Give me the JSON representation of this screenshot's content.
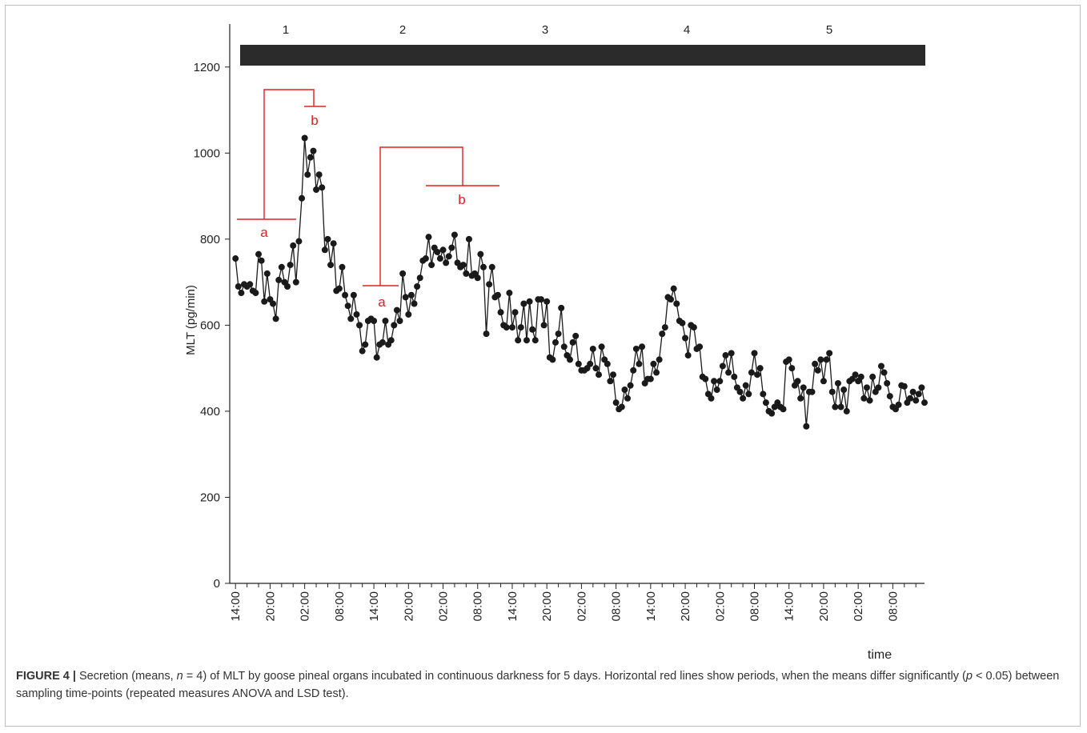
{
  "chart_data": {
    "type": "line",
    "y_label": "MLT (pg/min)",
    "x_label": "time",
    "periods": [
      "1",
      "2",
      "3",
      "4",
      "5"
    ],
    "annotations": [
      "a",
      "b",
      "a",
      "b"
    ],
    "color": "#1a1a1a",
    "annotation_color": "#e0201b",
    "ylim": [
      0,
      1300
    ],
    "yticks": [
      0,
      200,
      400,
      600,
      800,
      1000,
      1200
    ],
    "xlim": [
      -1,
      119.5
    ],
    "xticks": [
      {
        "value": 0,
        "label": "14:00"
      },
      {
        "value": 6,
        "label": "20:00"
      },
      {
        "value": 12,
        "label": "02:00"
      },
      {
        "value": 18,
        "label": "08:00"
      },
      {
        "value": 24,
        "label": "14:00"
      },
      {
        "value": 30,
        "label": "20:00"
      },
      {
        "value": 36,
        "label": "02:00"
      },
      {
        "value": 42,
        "label": "08:00"
      },
      {
        "value": 48,
        "label": "14:00"
      },
      {
        "value": 54,
        "label": "20:00"
      },
      {
        "value": 60,
        "label": "02:00"
      },
      {
        "value": 66,
        "label": "08:00"
      },
      {
        "value": 72,
        "label": "14:00"
      },
      {
        "value": 78,
        "label": "20:00"
      },
      {
        "value": 84,
        "label": "02:00"
      },
      {
        "value": 90,
        "label": "08:00"
      },
      {
        "value": 96,
        "label": "14:00"
      },
      {
        "value": 102,
        "label": "20:00"
      },
      {
        "value": 108,
        "label": "02:00"
      },
      {
        "value": 114,
        "label": "08:00"
      }
    ],
    "xminorticks": [
      2,
      4,
      8,
      10,
      14,
      16,
      20,
      22,
      26,
      28,
      32,
      34,
      38,
      40,
      44,
      46,
      50,
      52,
      56,
      58,
      62,
      64,
      68,
      70,
      74,
      76,
      80,
      82,
      86,
      88,
      92,
      94,
      98,
      100,
      104,
      106,
      110,
      112,
      116,
      118
    ],
    "x": [
      0,
      0.5,
      1,
      1.5,
      2,
      2.5,
      3,
      3.5,
      4,
      4.5,
      5,
      5.5,
      6,
      6.5,
      7,
      7.5,
      8,
      8.5,
      9,
      9.5,
      10,
      10.5,
      11,
      11.5,
      12,
      12.5,
      13,
      13.5,
      14,
      14.5,
      15,
      15.5,
      16,
      16.5,
      17,
      17.5,
      18,
      18.5,
      19,
      19.5,
      20,
      20.5,
      21,
      21.5,
      22,
      22.5,
      23,
      23.5,
      24,
      24.5,
      25,
      25.5,
      26,
      26.5,
      27,
      27.5,
      28,
      28.5,
      29,
      29.5,
      30,
      30.5,
      31,
      31.5,
      32,
      32.5,
      33,
      33.5,
      34,
      34.5,
      35,
      35.5,
      36,
      36.5,
      37,
      37.5,
      38,
      38.5,
      39,
      39.5,
      40,
      40.5,
      41,
      41.5,
      42,
      42.5,
      43,
      43.5,
      44,
      44.5,
      45,
      45.5,
      46,
      46.5,
      47,
      47.5,
      48,
      48.5,
      49,
      49.5,
      50,
      50.5,
      51,
      51.5,
      52,
      52.5,
      53,
      53.5,
      54,
      54.5,
      55,
      55.5,
      56,
      56.5,
      57,
      57.5,
      58,
      58.5,
      59,
      59.5,
      60,
      60.5,
      61,
      61.5,
      62,
      62.5,
      63,
      63.5,
      64,
      64.5,
      65,
      65.5,
      66,
      66.5,
      67,
      67.5,
      68,
      68.5,
      69,
      69.5,
      70,
      70.5,
      71,
      71.5,
      72,
      72.5,
      73,
      73.5,
      74,
      74.5,
      75,
      75.5,
      76,
      76.5,
      77,
      77.5,
      78,
      78.5,
      79,
      79.5,
      80,
      80.5,
      81,
      81.5,
      82,
      82.5,
      83,
      83.5,
      84,
      84.5,
      85,
      85.5,
      86,
      86.5,
      87,
      87.5,
      88,
      88.5,
      89,
      89.5,
      90,
      90.5,
      91,
      91.5,
      92,
      92.5,
      93,
      93.5,
      94,
      94.5,
      95,
      95.5,
      96,
      96.5,
      97,
      97.5,
      98,
      98.5,
      99,
      99.5,
      100,
      100.5,
      101,
      101.5,
      102,
      102.5,
      103,
      103.5,
      104,
      104.5,
      105,
      105.5,
      106,
      106.5,
      107,
      107.5,
      108,
      108.5,
      109,
      109.5,
      110,
      110.5,
      111,
      111.5,
      112,
      112.5,
      113,
      113.5,
      114,
      114.5,
      115,
      115.5,
      116,
      116.5,
      117,
      117.5,
      118,
      118.5,
      119,
      119.5
    ],
    "values": [
      755,
      690,
      675,
      695,
      690,
      695,
      680,
      675,
      765,
      750,
      655,
      720,
      660,
      650,
      615,
      705,
      735,
      700,
      690,
      740,
      785,
      700,
      795,
      895,
      1035,
      950,
      990,
      1005,
      915,
      950,
      920,
      775,
      800,
      740,
      790,
      680,
      685,
      735,
      670,
      645,
      615,
      670,
      625,
      600,
      540,
      555,
      610,
      615,
      610,
      525,
      555,
      560,
      610,
      555,
      565,
      600,
      635,
      610,
      720,
      665,
      625,
      670,
      650,
      690,
      710,
      750,
      755,
      805,
      740,
      780,
      770,
      755,
      775,
      745,
      760,
      780,
      810,
      745,
      735,
      740,
      720,
      800,
      715,
      720,
      710,
      765,
      735,
      580,
      695,
      735,
      665,
      670,
      630,
      600,
      595,
      675,
      595,
      630,
      565,
      595,
      650,
      565,
      655,
      590,
      565,
      660,
      660,
      600,
      655,
      525,
      520,
      560,
      580,
      640,
      550,
      530,
      520,
      560,
      575,
      510,
      495,
      495,
      500,
      510,
      545,
      500,
      485,
      550,
      520,
      510,
      470,
      485,
      420,
      405,
      410,
      450,
      430,
      460,
      495,
      545,
      510,
      550,
      465,
      475,
      475,
      510,
      490,
      520,
      580,
      595,
      665,
      660,
      685,
      650,
      610,
      605,
      570,
      530,
      600,
      595,
      545,
      550,
      480,
      475,
      440,
      430,
      470,
      450,
      470,
      505,
      530,
      490,
      535,
      480,
      455,
      445,
      430,
      460,
      440,
      490,
      535,
      485,
      500,
      440,
      420,
      400,
      395,
      410,
      420,
      410,
      405,
      515,
      520,
      500,
      460,
      470,
      430,
      455,
      365,
      445,
      445,
      510,
      495,
      520,
      470,
      520,
      535,
      445,
      410,
      465,
      410,
      450,
      400,
      470,
      475,
      485,
      470,
      480,
      430,
      455,
      425,
      480,
      445,
      455,
      505,
      490,
      465,
      435,
      410,
      405,
      415,
      460,
      458,
      420,
      430,
      445,
      425,
      440,
      455,
      420
    ]
  },
  "caption": {
    "label": "FIGURE 4 |",
    "parts": [
      "Secretion (means, ",
      "n",
      " = 4) of MLT by goose pineal organs incubated in continuous darkness for 5 days. Horizontal red lines show periods, when the means differ significantly (",
      "p",
      " < 0.05) between sampling time-points (repeated measures ANOVA and LSD test)."
    ]
  }
}
